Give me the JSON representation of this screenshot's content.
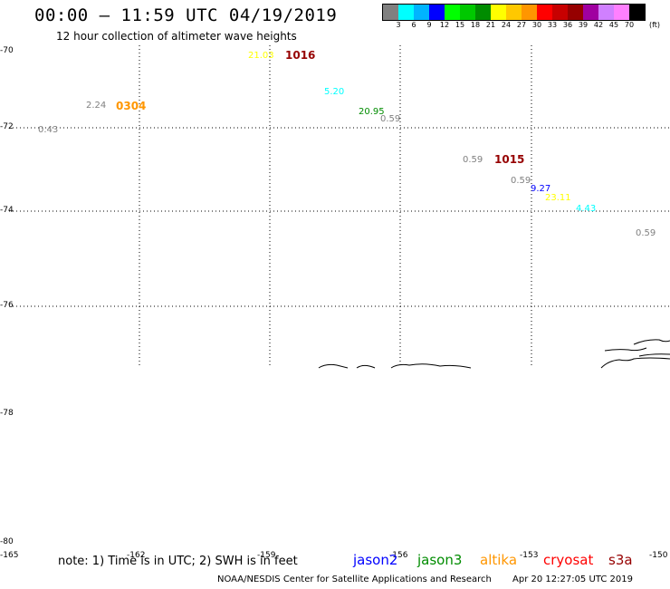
{
  "header": {
    "title": "00:00 – 11:59 UTC 04/19/2019",
    "subtitle": "12 hour collection of altimeter wave heights"
  },
  "legend": {
    "colors": [
      "#808080",
      "#00ffff",
      "#00b4ff",
      "#0000ff",
      "#00ff00",
      "#00c800",
      "#008c00",
      "#ffff00",
      "#ffc800",
      "#ff9600",
      "#ff0000",
      "#c80000",
      "#960000",
      "#a000a0",
      "#d080ff",
      "#ff80ff",
      "#000000"
    ],
    "ticks": [
      "3",
      "6",
      "9",
      "12",
      "15",
      "18",
      "21",
      "24",
      "27",
      "30",
      "33",
      "36",
      "39",
      "42",
      "45",
      "70"
    ],
    "unit": "(ft)"
  },
  "axes": {
    "lat_labels": [
      "-70",
      "-72",
      "-74",
      "-76",
      "-78",
      "-80"
    ],
    "lon_labels": [
      "-165",
      "-162",
      "-159",
      "-156",
      "-153",
      "-150"
    ]
  },
  "observations": [
    {
      "value": "21.03",
      "color": "#ffff00"
    },
    {
      "value": "2.24",
      "color": "#808080"
    },
    {
      "value": "0.43",
      "color": "#808080"
    },
    {
      "value": "5.20",
      "color": "#00ffff"
    },
    {
      "value": "20.95",
      "color": "#008c00"
    },
    {
      "value": "0.59",
      "color": "#808080"
    },
    {
      "value": "0.59",
      "color": "#808080"
    },
    {
      "value": "0.59",
      "color": "#808080"
    },
    {
      "value": "9.27",
      "color": "#0000ff"
    },
    {
      "value": "23.11",
      "color": "#ffff00"
    },
    {
      "value": "4.43",
      "color": "#00ffff"
    },
    {
      "value": "0.59",
      "color": "#808080"
    }
  ],
  "pass_labels": [
    {
      "label": "1016",
      "color": "#960000"
    },
    {
      "label": "0304",
      "color": "#ff9600"
    },
    {
      "label": "1015",
      "color": "#960000"
    }
  ],
  "note": "note: 1) Time is in UTC; 2) SWH is in feet",
  "satellites": [
    {
      "name": "jason2",
      "color": "#0000ff"
    },
    {
      "name": "jason3",
      "color": "#008c00"
    },
    {
      "name": "altika",
      "color": "#ff9600"
    },
    {
      "name": "cryosat",
      "color": "#ff0000"
    },
    {
      "name": "s3a",
      "color": "#960000"
    }
  ],
  "footer": {
    "credit": "NOAA/NESDIS Center for Satellite Applications and Research",
    "timestamp": "Apr 20 12:27:05 UTC 2019"
  }
}
